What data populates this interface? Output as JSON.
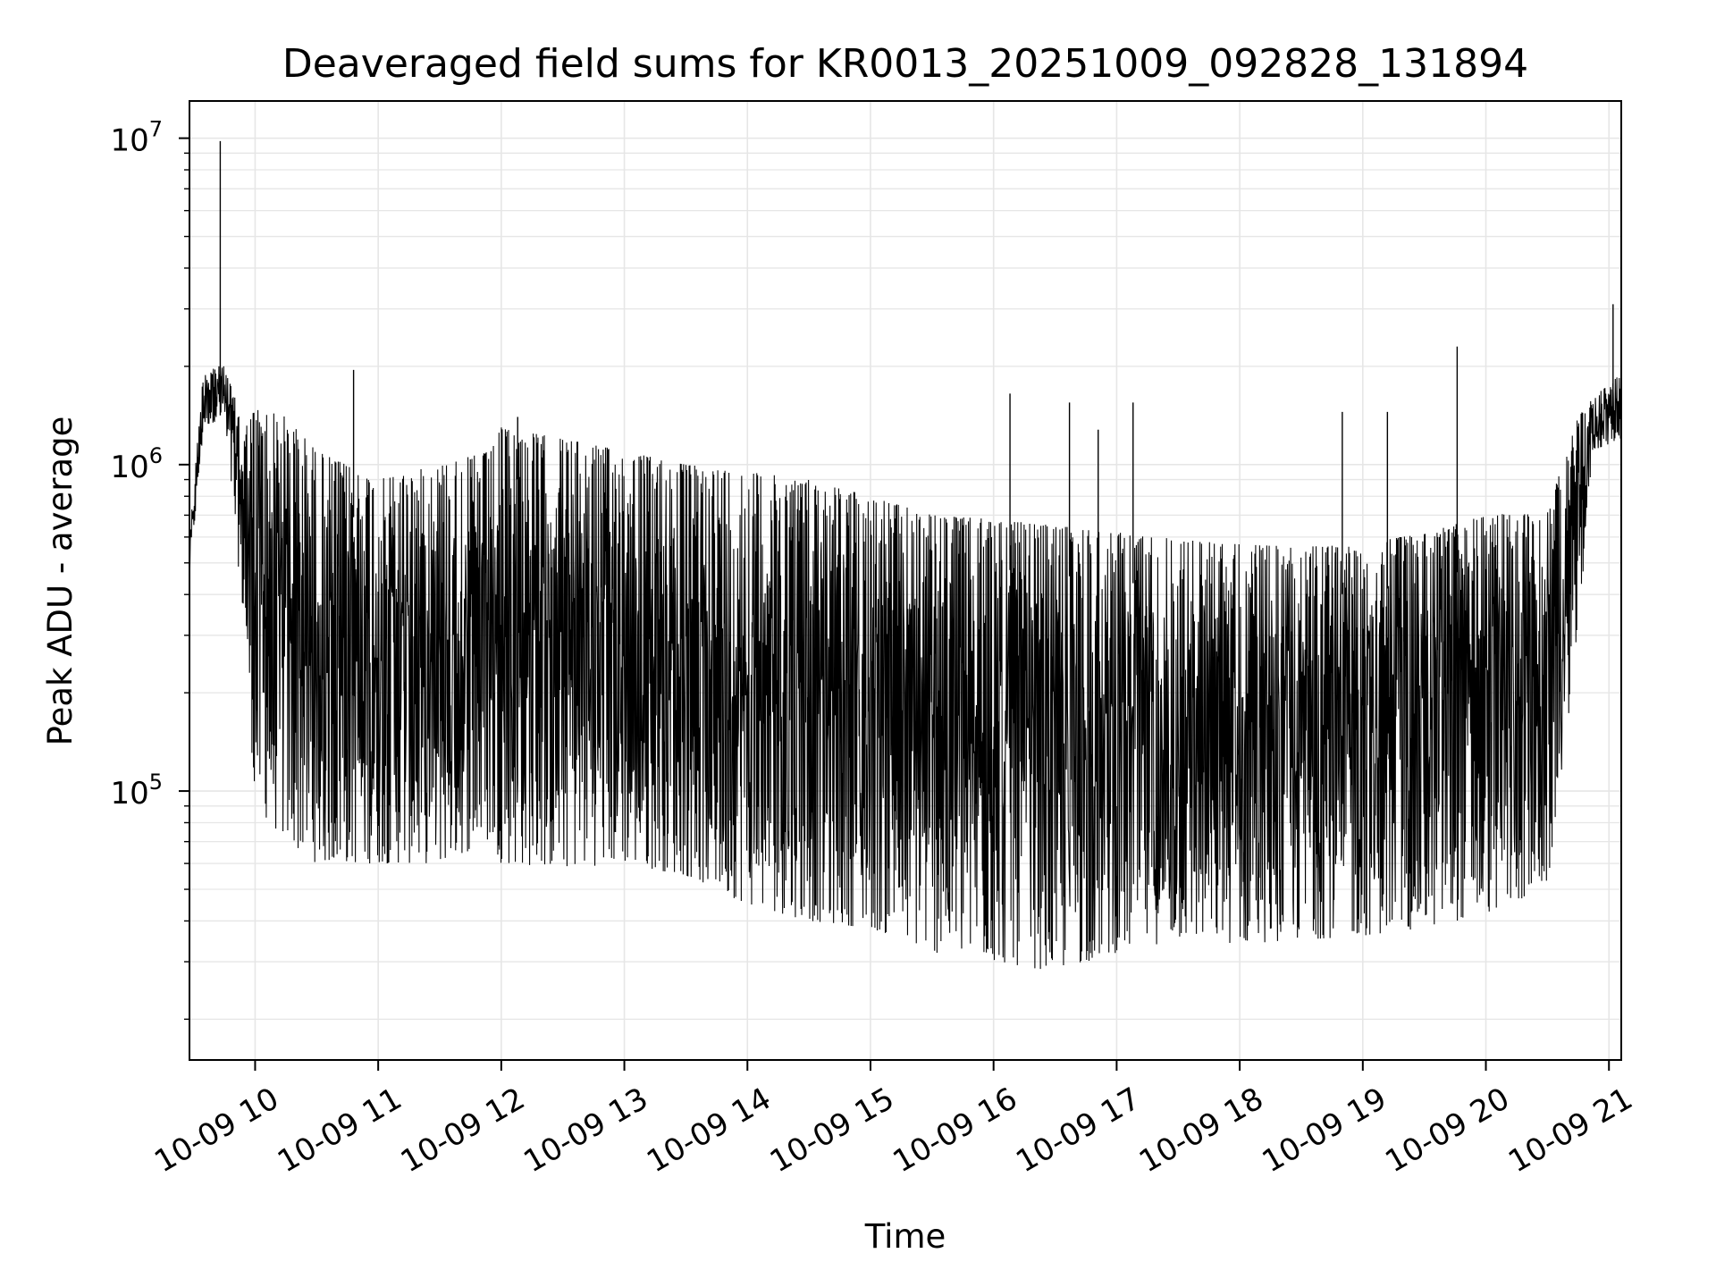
{
  "chart_data": {
    "type": "line",
    "title": "Deaveraged field sums for KR0013_20251009_092828_131894",
    "xlabel": "Time",
    "ylabel": "Peak ADU - average",
    "yscale": "log",
    "grid": true,
    "line_color": "#000000",
    "grid_color": "#e6e6e6",
    "xlim": [
      "2025-10-09 09:28",
      "2025-10-09 21:06"
    ],
    "ylim": [
      15000,
      13000000
    ],
    "x_ticks": [
      {
        "value": "2025-10-09 10:00",
        "label": "10-09 10"
      },
      {
        "value": "2025-10-09 11:00",
        "label": "10-09 11"
      },
      {
        "value": "2025-10-09 12:00",
        "label": "10-09 12"
      },
      {
        "value": "2025-10-09 13:00",
        "label": "10-09 13"
      },
      {
        "value": "2025-10-09 14:00",
        "label": "10-09 14"
      },
      {
        "value": "2025-10-09 15:00",
        "label": "10-09 15"
      },
      {
        "value": "2025-10-09 16:00",
        "label": "10-09 16"
      },
      {
        "value": "2025-10-09 17:00",
        "label": "10-09 17"
      },
      {
        "value": "2025-10-09 18:00",
        "label": "10-09 18"
      },
      {
        "value": "2025-10-09 19:00",
        "label": "10-09 19"
      },
      {
        "value": "2025-10-09 20:00",
        "label": "10-09 20"
      },
      {
        "value": "2025-10-09 21:00",
        "label": "10-09 21"
      }
    ],
    "y_ticks": [
      {
        "value": 100000,
        "base": "10",
        "exp": "5"
      },
      {
        "value": 1000000,
        "base": "10",
        "exp": "6"
      },
      {
        "value": 10000000,
        "base": "10",
        "exp": "7"
      }
    ],
    "envelope": {
      "x": [
        "2025-10-09 09:28",
        "2025-10-09 09:35",
        "2025-10-09 09:45",
        "2025-10-09 09:55",
        "2025-10-09 10:00",
        "2025-10-09 10:15",
        "2025-10-09 10:30",
        "2025-10-09 11:00",
        "2025-10-09 11:30",
        "2025-10-09 11:55",
        "2025-10-09 12:00",
        "2025-10-09 12:30",
        "2025-10-09 13:00",
        "2025-10-09 13:30",
        "2025-10-09 14:00",
        "2025-10-09 14:30",
        "2025-10-09 15:00",
        "2025-10-09 15:30",
        "2025-10-09 16:00",
        "2025-10-09 16:30",
        "2025-10-09 17:00",
        "2025-10-09 17:30",
        "2025-10-09 18:00",
        "2025-10-09 18:30",
        "2025-10-09 19:00",
        "2025-10-09 19:30",
        "2025-10-09 20:00",
        "2025-10-09 20:30",
        "2025-10-09 20:45",
        "2025-10-09 20:52",
        "2025-10-09 21:06"
      ],
      "high": [
        600000,
        2000000,
        2000000,
        1300000,
        1500000,
        1400000,
        1100000,
        900000,
        1000000,
        1100000,
        1300000,
        1200000,
        1100000,
        1000000,
        950000,
        900000,
        800000,
        700000,
        680000,
        650000,
        620000,
        590000,
        570000,
        560000,
        570000,
        620000,
        700000,
        720000,
        1400000,
        1600000,
        1900000
      ],
      "low": [
        450000,
        1300000,
        1400000,
        300000,
        90000,
        70000,
        60000,
        60000,
        60000,
        70000,
        60000,
        58000,
        60000,
        55000,
        45000,
        40000,
        38000,
        32000,
        30000,
        28000,
        32000,
        35000,
        34000,
        35000,
        36000,
        38000,
        42000,
        50000,
        300000,
        1100000,
        1200000
      ]
    },
    "spikes": [
      {
        "x": "2025-10-09 09:43",
        "y": 9800000
      },
      {
        "x": "2025-10-09 10:48",
        "y": 1950000
      },
      {
        "x": "2025-10-09 12:08",
        "y": 1400000
      },
      {
        "x": "2025-10-09 16:08",
        "y": 1650000
      },
      {
        "x": "2025-10-09 16:37",
        "y": 1550000
      },
      {
        "x": "2025-10-09 16:51",
        "y": 1280000
      },
      {
        "x": "2025-10-09 17:08",
        "y": 1550000
      },
      {
        "x": "2025-10-09 18:50",
        "y": 1450000
      },
      {
        "x": "2025-10-09 19:12",
        "y": 1450000
      },
      {
        "x": "2025-10-09 19:46",
        "y": 2300000
      },
      {
        "x": "2025-10-09 21:02",
        "y": 3100000
      }
    ]
  }
}
